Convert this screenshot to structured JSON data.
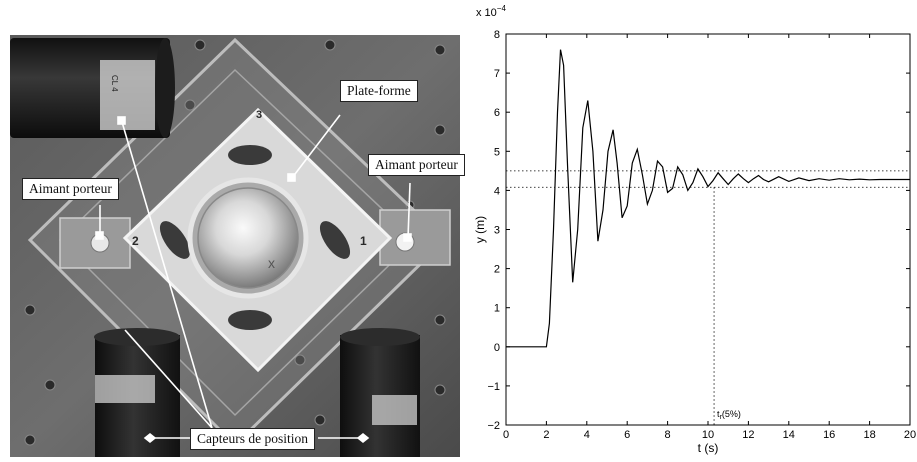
{
  "photo": {
    "callouts": {
      "platform": "Plate-forme",
      "magnet_left": "Aimant porteur",
      "magnet_right": "Aimant porteur",
      "sensors": "Capteurs de position"
    },
    "corner_numbers": [
      "1",
      "2",
      "3"
    ],
    "sensor_print": "CL 4"
  },
  "chart_data": {
    "type": "line",
    "xlabel": "t (s)",
    "ylabel": "y (m)",
    "y_multiplier": "x 10",
    "y_multiplier_exponent": "−4",
    "xlim": [
      0,
      20
    ],
    "ylim": [
      -2,
      8
    ],
    "xticks": [
      "0",
      "2",
      "4",
      "6",
      "8",
      "10",
      "12",
      "14",
      "16",
      "18",
      "20"
    ],
    "yticks": [
      "−2",
      "−1",
      "0",
      "1",
      "2",
      "3",
      "4",
      "5",
      "6",
      "7",
      "8"
    ],
    "grid": false,
    "steady_state": 4.28,
    "band_upper": 4.5,
    "band_lower": 4.08,
    "settling_time": 10.3,
    "settling_label_base": "t",
    "settling_label_sub": "r",
    "settling_label_suffix": "(5%)",
    "series": [
      {
        "x": [
          0,
          2.0,
          2.15,
          2.35,
          2.55,
          2.7,
          2.85,
          3.05,
          3.3,
          3.55,
          3.8,
          4.05,
          4.3,
          4.55,
          4.8,
          5.05,
          5.3,
          5.5,
          5.75,
          6.0,
          6.25,
          6.5,
          6.75,
          7.0,
          7.25,
          7.5,
          7.75,
          8.0,
          8.25,
          8.5,
          8.75,
          9.0,
          9.25,
          9.5,
          9.75,
          10.0,
          10.25,
          10.5,
          10.75,
          11.0,
          11.25,
          11.5,
          11.75,
          12.0,
          12.25,
          12.5,
          12.75,
          13.0,
          13.5,
          14.0,
          14.5,
          15.0,
          15.5,
          16.0,
          16.5,
          17.0,
          17.5,
          18.0,
          18.5,
          19.0,
          19.5,
          20.0
        ],
        "y": [
          0,
          0,
          0.6,
          3.0,
          6.0,
          7.6,
          7.2,
          4.6,
          1.65,
          3.0,
          5.6,
          6.3,
          5.0,
          2.7,
          3.5,
          5.0,
          5.55,
          4.7,
          3.3,
          3.6,
          4.7,
          5.05,
          4.4,
          3.65,
          4.0,
          4.75,
          4.6,
          3.95,
          4.05,
          4.6,
          4.4,
          4.0,
          4.2,
          4.55,
          4.35,
          4.1,
          4.25,
          4.45,
          4.3,
          4.15,
          4.3,
          4.42,
          4.3,
          4.2,
          4.3,
          4.38,
          4.28,
          4.22,
          4.35,
          4.23,
          4.32,
          4.25,
          4.3,
          4.26,
          4.3,
          4.27,
          4.29,
          4.27,
          4.28,
          4.28,
          4.28,
          4.28
        ]
      }
    ]
  }
}
